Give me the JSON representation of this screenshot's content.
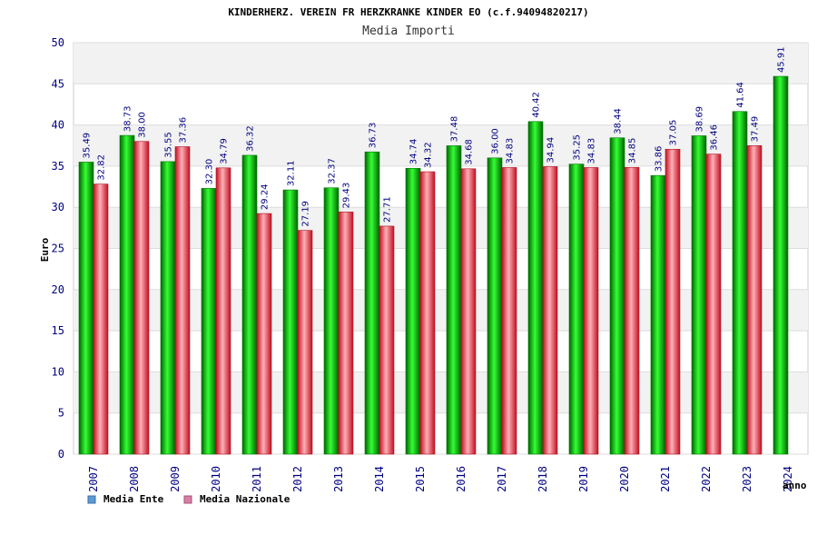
{
  "chart_data": {
    "type": "bar",
    "title": "KINDERHERZ. VEREIN FR HERZKRANKE KINDER EO (c.f.94094820217)",
    "subtitle": "Media Importi",
    "ylabel": "Euro",
    "xlabel": "anno",
    "ylim": [
      0,
      50
    ],
    "yticks": [
      "0",
      "5",
      "10",
      "15",
      "20",
      "25",
      "30",
      "35",
      "40",
      "45",
      "50"
    ],
    "categories": [
      "2007",
      "2008",
      "2009",
      "2010",
      "2011",
      "2012",
      "2013",
      "2014",
      "2015",
      "2016",
      "2017",
      "2018",
      "2019",
      "2020",
      "2021",
      "2022",
      "2023",
      "2024"
    ],
    "series": [
      {
        "name": "Media Ente",
        "color": "#00b000",
        "values": [
          35.49,
          38.73,
          35.55,
          32.3,
          36.32,
          32.11,
          32.37,
          36.73,
          34.74,
          37.48,
          36.0,
          40.42,
          35.25,
          38.44,
          33.86,
          38.69,
          41.64,
          45.91
        ],
        "labels": [
          "35.49",
          "38.73",
          "35.55",
          "32.30",
          "36.32",
          "32.11",
          "32.37",
          "36.73",
          "34.74",
          "37.48",
          "36.00",
          "40.42",
          "35.25",
          "38.44",
          "33.86",
          "38.69",
          "41.64",
          "45.91"
        ]
      },
      {
        "name": "Media Nazionale",
        "color": "#e8303a",
        "values": [
          32.82,
          38.0,
          37.36,
          34.79,
          29.24,
          27.19,
          29.43,
          27.71,
          34.32,
          34.68,
          34.83,
          34.94,
          34.83,
          34.85,
          37.05,
          36.46,
          37.49,
          null
        ],
        "labels": [
          "32.82",
          "38.00",
          "37.36",
          "34.79",
          "29.24",
          "27.19",
          "29.43",
          "27.71",
          "34.32",
          "34.68",
          "34.83",
          "34.94",
          "34.83",
          "34.85",
          "37.05",
          "36.46",
          "37.49",
          ""
        ]
      }
    ],
    "legend": [
      {
        "name": "Media Ente",
        "swatch": "#5b9bd5"
      },
      {
        "name": "Media Nazionale",
        "swatch": "#d97fa6"
      }
    ],
    "legend_position": "bottom-left",
    "grid": true
  }
}
